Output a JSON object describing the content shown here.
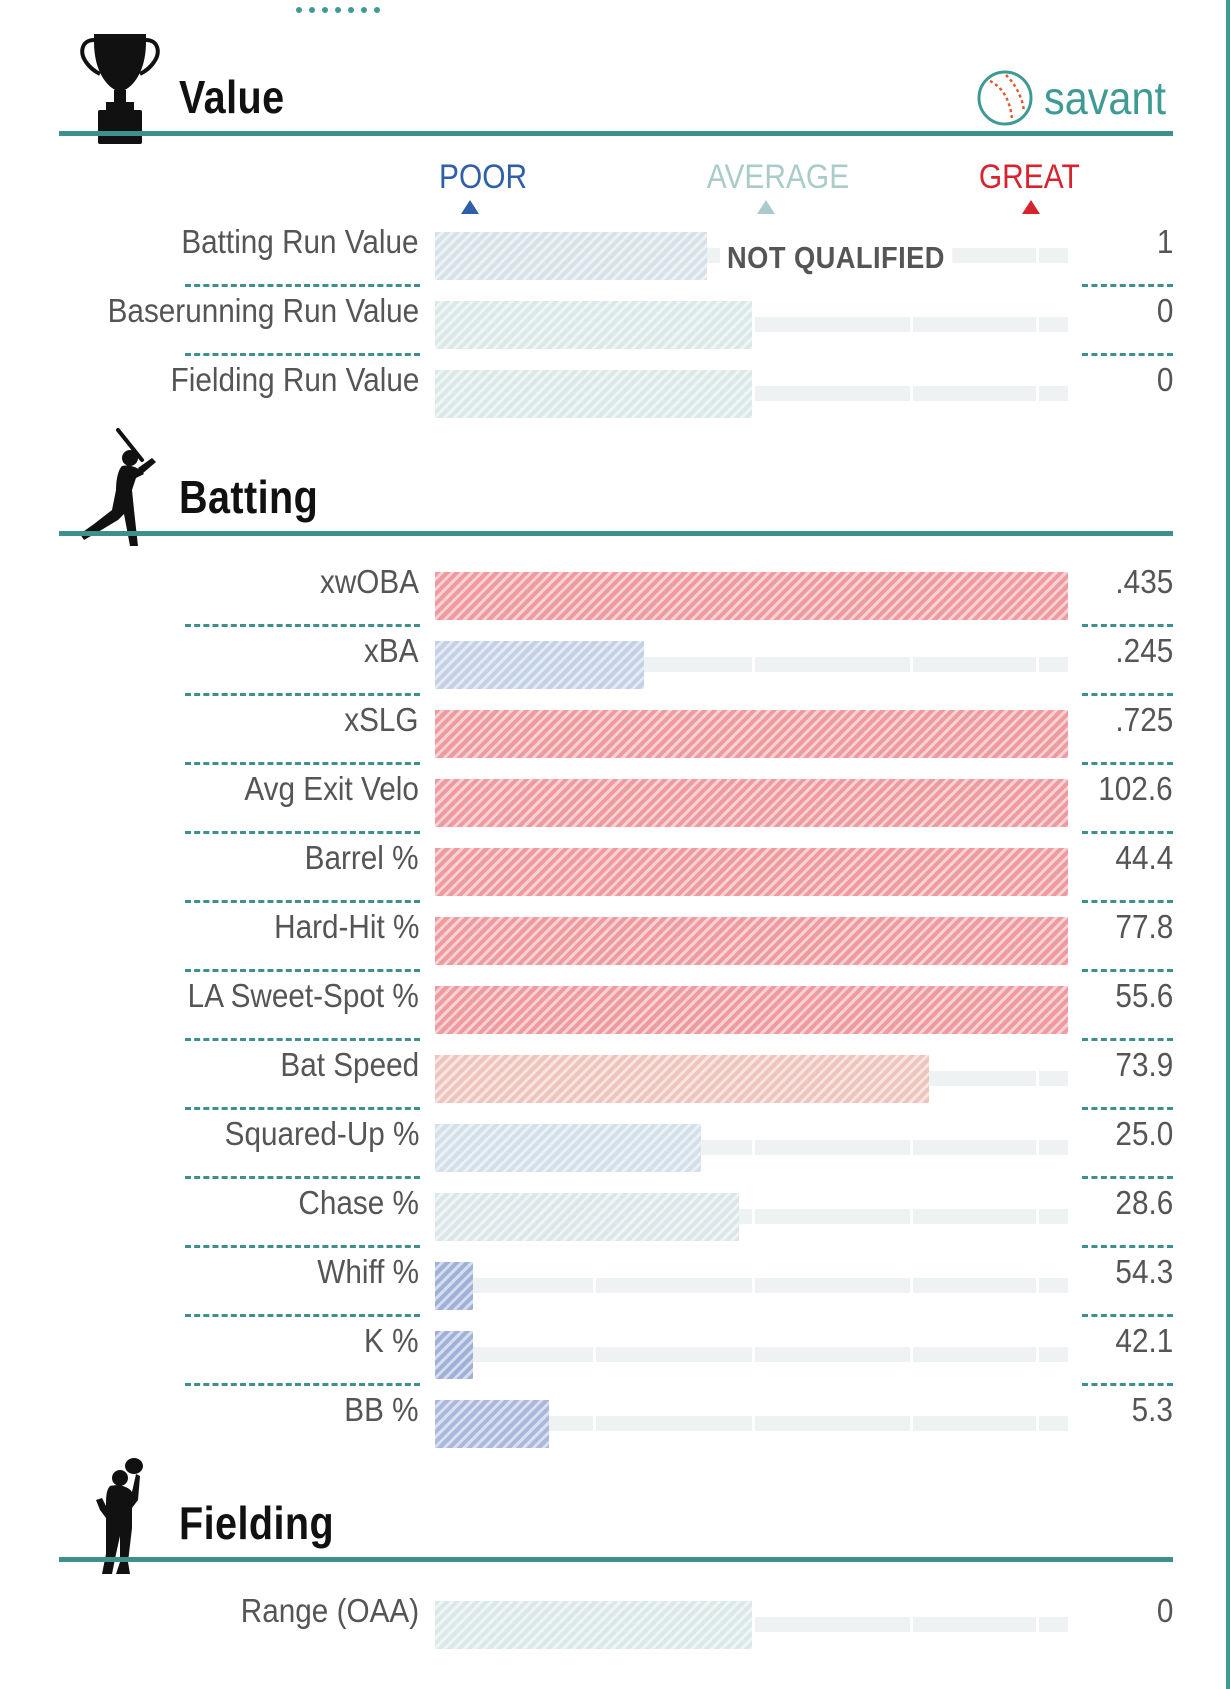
{
  "colors": {
    "teal": "#3f8f8c",
    "poor": "#2f5fa8",
    "average": "#a9cccb",
    "great": "#d7232e",
    "track": "#eef2f2"
  },
  "scale": {
    "poor": "POOR",
    "average": "AVERAGE",
    "great": "GREAT"
  },
  "brand": {
    "name": "savant",
    "icon": "baseball-icon"
  },
  "sections": [
    {
      "id": "value",
      "title": "Value",
      "icon": "trophy-icon",
      "rows": [
        {
          "label": "Batting Run Value",
          "value": "1",
          "percentile": 43,
          "color": "#d6e2e8",
          "note": "NOT QUALIFIED"
        },
        {
          "label": "Baserunning Run Value",
          "value": "0",
          "percentile": 50,
          "color": "#dbe8e8"
        },
        {
          "label": "Fielding Run Value",
          "value": "0",
          "percentile": 50,
          "color": "#dbe8e8"
        }
      ]
    },
    {
      "id": "batting",
      "title": "Batting",
      "icon": "batter-icon",
      "rows": [
        {
          "label": "xwOBA",
          "value": ".435",
          "percentile": 100,
          "color": "#ee9a9e"
        },
        {
          "label": "xBA",
          "value": ".245",
          "percentile": 33,
          "color": "#c3d0e6"
        },
        {
          "label": "xSLG",
          "value": ".725",
          "percentile": 100,
          "color": "#ee9a9e"
        },
        {
          "label": "Avg Exit Velo",
          "value": "102.6",
          "percentile": 100,
          "color": "#ee9a9e"
        },
        {
          "label": "Barrel %",
          "value": "44.4",
          "percentile": 100,
          "color": "#ee9a9e"
        },
        {
          "label": "Hard-Hit %",
          "value": "77.8",
          "percentile": 100,
          "color": "#ee9a9e"
        },
        {
          "label": "LA Sweet-Spot %",
          "value": "55.6",
          "percentile": 100,
          "color": "#ee9a9e"
        },
        {
          "label": "Bat Speed",
          "value": "73.9",
          "percentile": 78,
          "color": "#efc4bd"
        },
        {
          "label": "Squared-Up %",
          "value": "25.0",
          "percentile": 42,
          "color": "#d3dfe9"
        },
        {
          "label": "Chase %",
          "value": "28.6",
          "percentile": 48,
          "color": "#dbe6e8"
        },
        {
          "label": "Whiff %",
          "value": "54.3",
          "percentile": 6,
          "color": "#9fb1d8"
        },
        {
          "label": "K %",
          "value": "42.1",
          "percentile": 6,
          "color": "#9fb1d8"
        },
        {
          "label": "BB %",
          "value": "5.3",
          "percentile": 18,
          "color": "#a9b8dc"
        }
      ]
    },
    {
      "id": "fielding",
      "title": "Fielding",
      "icon": "fielder-icon",
      "rows": [
        {
          "label": "Range (OAA)",
          "value": "0",
          "percentile": 50,
          "color": "#dbe8e8"
        }
      ]
    }
  ],
  "chart_data": {
    "type": "bar",
    "orientation": "horizontal",
    "xlim": [
      0,
      100
    ],
    "categories": [
      "Batting Run Value",
      "Baserunning Run Value",
      "Fielding Run Value",
      "xwOBA",
      "xBA",
      "xSLG",
      "Avg Exit Velo",
      "Barrel %",
      "Hard-Hit %",
      "LA Sweet-Spot %",
      "Bat Speed",
      "Squared-Up %",
      "Chase %",
      "Whiff %",
      "K %",
      "BB %",
      "Range (OAA)"
    ],
    "series": [
      {
        "values": [
          43,
          50,
          50,
          100,
          33,
          100,
          100,
          100,
          100,
          100,
          78,
          42,
          48,
          6,
          6,
          18,
          50
        ]
      }
    ],
    "value_labels": [
      "1",
      "0",
      "0",
      ".435",
      ".245",
      ".725",
      "102.6",
      "44.4",
      "77.8",
      "55.6",
      "73.9",
      "25.0",
      "28.6",
      "54.3",
      "42.1",
      "5.3",
      "0"
    ]
  }
}
